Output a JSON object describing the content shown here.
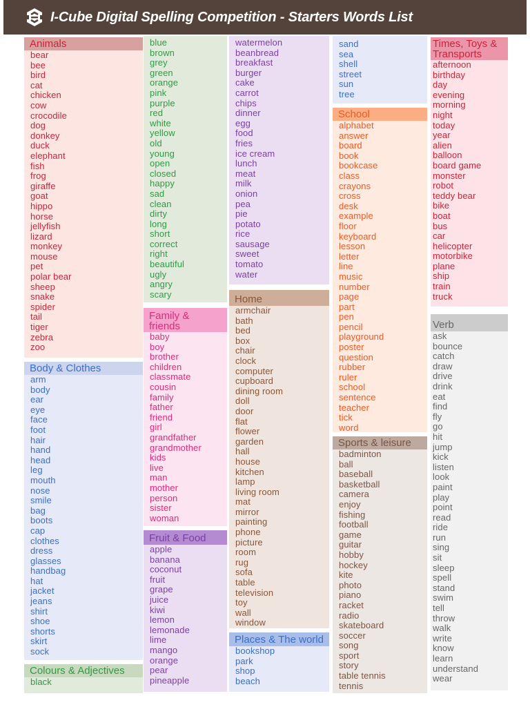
{
  "header": {
    "title": "I-Cube Digital Spelling Competition - Starters Words List",
    "logo_icon": "i-cube-hexagon-logo-icon",
    "background": "#54433b"
  },
  "sections": {
    "animals": {
      "title": "Animals",
      "color": "#c9243a",
      "words": [
        "bear",
        "bee",
        "bird",
        "cat",
        "chicken",
        "cow",
        "crocodile",
        "dog",
        "donkey",
        "duck",
        "elephant",
        "fish",
        "frog",
        "giraffe",
        "goat",
        "hippo",
        "horse",
        "jellyfish",
        "lizard",
        "monkey",
        "mouse",
        "pet",
        "polar bear",
        "sheep",
        "snake",
        "spider",
        "tail",
        "tiger",
        "zebra",
        "zoo"
      ]
    },
    "body_clothes": {
      "title": "Body & Clothes",
      "color": "#3a6fc4",
      "words": [
        "arm",
        "body",
        "ear",
        "eye",
        "face",
        "foot",
        "hair",
        "hand",
        "head",
        "leg",
        "mouth",
        "nose",
        "smile",
        "bag",
        "boots",
        "cap",
        "clothes",
        "dress",
        "glasses",
        "handbag",
        "hat",
        "jacket",
        "jeans",
        "shirt",
        "shoe",
        "shorts",
        "skirt",
        "sock"
      ]
    },
    "colours_adjectives": {
      "title": "Colours & Adjectives",
      "color": "#2e9a44",
      "words_part1": [
        "black"
      ],
      "words_part2": [
        "blue",
        "brown",
        "grey",
        "green",
        "orange",
        "pink",
        "purple",
        "red",
        "white",
        "yellow",
        "old",
        "young",
        "open",
        "closed",
        "happy",
        "sad",
        "clean",
        "dirty",
        "long",
        "short",
        "correct",
        "right",
        "beautiful",
        "ugly",
        "angry",
        "scary"
      ]
    },
    "family_friends": {
      "title_line1": "Family &",
      "title_line2": "friends",
      "color": "#e0287e",
      "words": [
        "baby",
        "boy",
        "brother",
        "children",
        "classmate",
        "cousin",
        "family",
        "father",
        "friend",
        "girl",
        "grandfather",
        "grandmother",
        "kids",
        "live",
        "man",
        "mother",
        "person",
        "sister",
        "woman"
      ]
    },
    "fruit_food": {
      "title": "Fruit & Food",
      "color": "#7a3fa3",
      "words_part1": [
        "apple",
        "banana",
        "coconut",
        "fruit",
        "grape",
        "juice",
        "kiwi",
        "lemon",
        "lemonade",
        "lime",
        "mango",
        "orange",
        "pear",
        "pineapple"
      ],
      "words_part2": [
        "watermelon",
        "beanbread",
        "breakfast",
        "burger",
        "cake",
        "carrot",
        "chips",
        "dinner",
        "egg",
        "food",
        "fries",
        "ice cream",
        "lunch",
        "meat",
        "milk",
        "onion",
        "pea",
        "pie",
        "potato",
        "rice",
        "sausage",
        "sweet",
        "tomato",
        "water"
      ]
    },
    "home": {
      "title": "Home",
      "color": "#8a5538",
      "words": [
        "armchair",
        "bath",
        "bed",
        "box",
        "chair",
        "clock",
        "computer",
        "cupboard",
        "dining room",
        "doll",
        "door",
        "flat",
        "flower",
        "garden",
        "hall",
        "house",
        "kitchen",
        "lamp",
        "living room",
        "mat",
        "mirror",
        "painting",
        "phone",
        "picture",
        "room",
        "rug",
        "sofa",
        "table",
        "television",
        "toy",
        "wall",
        "window"
      ]
    },
    "places_world": {
      "title": "Places & The world",
      "color": "#3a6fc4",
      "words_part1": [
        "bookshop",
        "park",
        "shop",
        "beach"
      ],
      "words_part2": [
        "sand",
        "sea",
        "shell",
        "street",
        "sun",
        "tree"
      ]
    },
    "school": {
      "title": "School",
      "color": "#ee5a24",
      "words": [
        "alphabet",
        "answer",
        "board",
        "book",
        "bookcase",
        "class",
        "crayons",
        "cross",
        "desk",
        "example",
        "floor",
        "keyboard",
        "lesson",
        "letter",
        "line",
        "music",
        "number",
        "page",
        "part",
        "pen",
        "pencil",
        "playground",
        "poster",
        "question",
        "rubber",
        "ruler",
        "school",
        "sentence",
        "teacher",
        "tick",
        "word"
      ]
    },
    "sports_leisure": {
      "title": "Sports & leisure",
      "color": "#7b5443",
      "words": [
        "badminton",
        "ball",
        "baseball",
        "basketball",
        "camera",
        "enjoy",
        "fishing",
        "football",
        "game",
        "guitar",
        "hobby",
        "hockey",
        "kite",
        "photo",
        "piano",
        "racket",
        "radio",
        "skateboard",
        "soccer",
        "song",
        "sport",
        "story",
        "table tennis",
        "tennis"
      ]
    },
    "times_toys_transports": {
      "title_line1": "Times, Toys &",
      "title_line2": "Transports",
      "color": "#c9243a",
      "words": [
        "afternoon",
        "birthday",
        "day",
        "evening",
        "morning",
        "night",
        "today",
        "year",
        "alien",
        "balloon",
        "board game",
        "monster",
        "robot",
        "teddy bear",
        "bike",
        "boat",
        "bus",
        "car",
        "helicopter",
        "motorbike",
        "plane",
        "ship",
        "train",
        "truck"
      ]
    },
    "verb": {
      "title": "Verb",
      "color": "#666666",
      "words": [
        "ask",
        "bounce",
        "catch",
        "draw",
        "drive",
        "drink",
        "eat",
        "find",
        "fly",
        "go",
        "hit",
        "jump",
        "kick",
        "listen",
        "look",
        "paint",
        "play",
        "point",
        "read",
        "ride",
        "run",
        "sing",
        "sit",
        "sleep",
        "spell",
        "stand",
        "swim",
        "tell",
        "throw",
        "walk",
        "write",
        "know",
        "learn",
        "understand",
        "wear"
      ]
    }
  }
}
